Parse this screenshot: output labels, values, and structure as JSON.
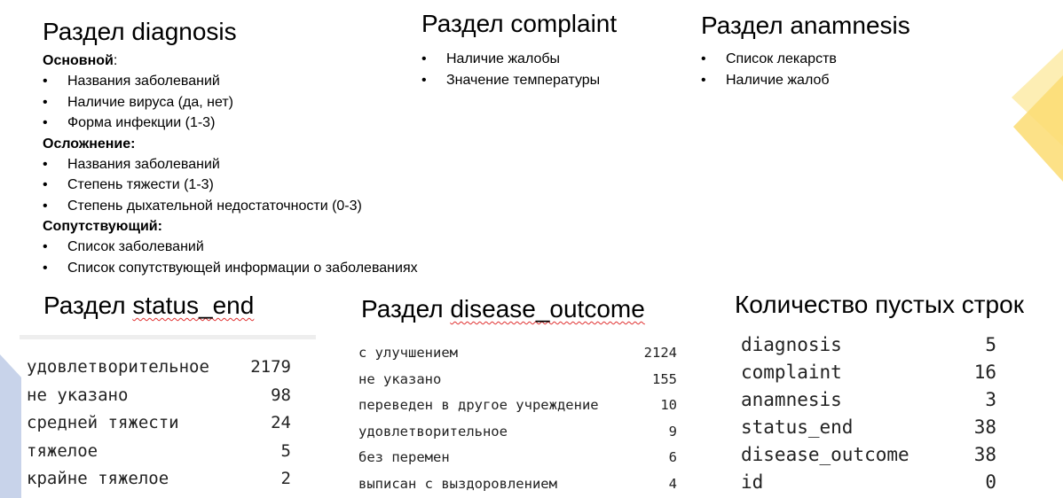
{
  "diagnosis": {
    "title_prefix": "Раздел ",
    "title_word": "diagnosis",
    "groups": [
      {
        "label": "Основной",
        "label_suffix": ":",
        "items": [
          "Названия заболеваний",
          "Наличие вируса (да, нет)",
          "Форма инфекции (1-3)"
        ]
      },
      {
        "label": "Осложнение:",
        "label_suffix": "",
        "items": [
          "Названия заболеваний",
          "Степень тяжести (1-3)",
          "Степень дыхательной недостаточности (0-3)"
        ]
      },
      {
        "label": "Сопутствующий:",
        "label_suffix": "",
        "items": [
          "Список заболеваний",
          "Список сопутствующей информации о заболеваниях"
        ]
      }
    ]
  },
  "complaint": {
    "title_prefix": "Раздел ",
    "title_word": "complaint",
    "items": [
      "Наличие жалобы",
      "Значение температуры"
    ]
  },
  "anamnesis": {
    "title_prefix": "Раздел ",
    "title_word": "anamnesis",
    "items": [
      "Список лекарств",
      "Наличие жалоб"
    ]
  },
  "status_end": {
    "title_prefix": "Раздел ",
    "title_word": "status_end",
    "rows": [
      {
        "label": "удовлетворительное",
        "count": "2179"
      },
      {
        "label": "не указано",
        "count": "98"
      },
      {
        "label": "средней тяжести",
        "count": "24"
      },
      {
        "label": "тяжелое",
        "count": "5"
      },
      {
        "label": "крайне тяжелое",
        "count": "2"
      }
    ]
  },
  "disease_outcome": {
    "title_prefix": "Раздел ",
    "title_word": "disease_outcome",
    "rows": [
      {
        "label": "с улучшением",
        "count": "2124"
      },
      {
        "label": "не указано",
        "count": "155"
      },
      {
        "label": "переведен в другое учреждение",
        "count": "10"
      },
      {
        "label": "удовлетворительное",
        "count": "9"
      },
      {
        "label": "без перемен",
        "count": "6"
      },
      {
        "label": "выписан с выздоровлением",
        "count": "4"
      }
    ]
  },
  "empty_rows": {
    "title": "Количество пустых строк",
    "rows": [
      {
        "label": "diagnosis",
        "count": "5"
      },
      {
        "label": "complaint",
        "count": "16"
      },
      {
        "label": "anamnesis",
        "count": "3"
      },
      {
        "label": "status_end",
        "count": "38"
      },
      {
        "label": "disease_outcome",
        "count": "38"
      },
      {
        "label": "id",
        "count": "0"
      }
    ]
  },
  "colors": {
    "accent_yellow": "#fbdc72",
    "accent_yellow_light": "#fdeeb4",
    "accent_blue": "#c8d3ea",
    "wavy_underline": "#e03030"
  }
}
